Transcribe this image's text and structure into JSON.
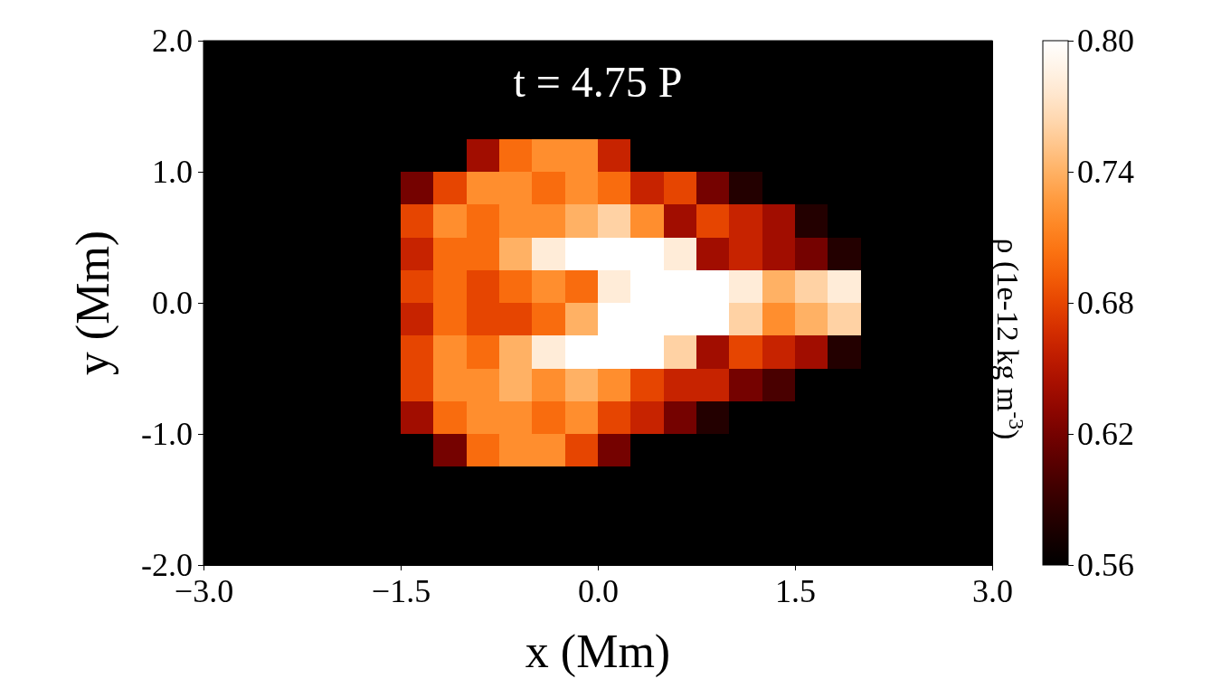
{
  "chart_data": {
    "type": "heatmap",
    "title": "t = 4.75 P",
    "xlabel": "x (Mm)",
    "ylabel": "y (Mm)",
    "clabel": "ρ (1e-12 kg m$^{-3}$)",
    "x": [
      -2.875,
      -2.625,
      -2.375,
      -2.125,
      -1.875,
      -1.625,
      -1.375,
      -1.125,
      -0.875,
      -0.625,
      -0.375,
      -0.125,
      0.125,
      0.375,
      0.625,
      0.875,
      1.125,
      1.375,
      1.625,
      1.875,
      2.125,
      2.375,
      2.625,
      2.875
    ],
    "y": [
      1.875,
      1.625,
      1.375,
      1.125,
      0.875,
      0.625,
      0.375,
      0.125,
      -0.125,
      -0.375,
      -0.625,
      -0.875,
      -1.125,
      -1.375,
      -1.625,
      -1.875
    ],
    "xlim": [
      -3,
      3
    ],
    "ylim": [
      -2,
      2
    ],
    "xticks": [
      {
        "value": -3,
        "label": "−3.0"
      },
      {
        "value": -1.5,
        "label": "−1.5"
      },
      {
        "value": 0,
        "label": "0.0"
      },
      {
        "value": 1.5,
        "label": "1.5"
      },
      {
        "value": 3,
        "label": "3.0"
      }
    ],
    "yticks": [
      {
        "value": -2,
        "label": "-2.0"
      },
      {
        "value": -1,
        "label": "-1.0"
      },
      {
        "value": 0,
        "label": "0.0"
      },
      {
        "value": 1,
        "label": "1.0"
      },
      {
        "value": 2,
        "label": "2.0"
      }
    ],
    "clim": [
      0.56,
      0.8
    ],
    "cticks": [
      0.56,
      0.62,
      0.68,
      0.74,
      {
        "value": 0.8,
        "label": "0.80"
      }
    ],
    "cells": [
      [
        0.56,
        0.56,
        0.56,
        0.56,
        0.56,
        0.56,
        0.56,
        0.56,
        0.56,
        0.56,
        0.56,
        0.56,
        0.56,
        0.56,
        0.56,
        0.56,
        0.56,
        0.56,
        0.56,
        0.56,
        0.56,
        0.56,
        0.56,
        0.56
      ],
      [
        0.56,
        0.56,
        0.56,
        0.56,
        0.56,
        0.56,
        0.56,
        0.56,
        0.56,
        0.56,
        0.56,
        0.56,
        0.56,
        0.56,
        0.56,
        0.56,
        0.56,
        0.56,
        0.56,
        0.56,
        0.56,
        0.56,
        0.56,
        0.56
      ],
      [
        0.56,
        0.56,
        0.56,
        0.56,
        0.56,
        0.56,
        0.56,
        0.56,
        0.56,
        0.56,
        0.56,
        0.56,
        0.56,
        0.56,
        0.56,
        0.56,
        0.56,
        0.56,
        0.56,
        0.56,
        0.56,
        0.56,
        0.56,
        0.56
      ],
      [
        0.56,
        0.56,
        0.56,
        0.56,
        0.56,
        0.56,
        0.56,
        0.56,
        0.64,
        0.7,
        0.72,
        0.72,
        0.66,
        0.56,
        0.56,
        0.56,
        0.56,
        0.56,
        0.56,
        0.56,
        0.56,
        0.56,
        0.56,
        0.56
      ],
      [
        0.56,
        0.56,
        0.56,
        0.56,
        0.56,
        0.56,
        0.62,
        0.68,
        0.72,
        0.72,
        0.7,
        0.72,
        0.7,
        0.66,
        0.68,
        0.62,
        0.58,
        0.56,
        0.56,
        0.56,
        0.56,
        0.56,
        0.56,
        0.56
      ],
      [
        0.56,
        0.56,
        0.56,
        0.56,
        0.56,
        0.56,
        0.68,
        0.72,
        0.7,
        0.72,
        0.72,
        0.74,
        0.76,
        0.72,
        0.64,
        0.68,
        0.66,
        0.64,
        0.58,
        0.56,
        0.56,
        0.56,
        0.56,
        0.56
      ],
      [
        0.56,
        0.56,
        0.56,
        0.56,
        0.56,
        0.56,
        0.66,
        0.7,
        0.7,
        0.74,
        0.78,
        0.8,
        0.8,
        0.8,
        0.78,
        0.64,
        0.66,
        0.64,
        0.62,
        0.58,
        0.56,
        0.56,
        0.56,
        0.56
      ],
      [
        0.56,
        0.56,
        0.56,
        0.56,
        0.56,
        0.56,
        0.68,
        0.7,
        0.68,
        0.7,
        0.72,
        0.7,
        0.78,
        0.8,
        0.8,
        0.8,
        0.78,
        0.74,
        0.76,
        0.78,
        0.56,
        0.56,
        0.56,
        0.56
      ],
      [
        0.56,
        0.56,
        0.56,
        0.56,
        0.56,
        0.56,
        0.66,
        0.7,
        0.68,
        0.68,
        0.7,
        0.74,
        0.8,
        0.8,
        0.8,
        0.8,
        0.76,
        0.72,
        0.74,
        0.76,
        0.56,
        0.56,
        0.56,
        0.56
      ],
      [
        0.56,
        0.56,
        0.56,
        0.56,
        0.56,
        0.56,
        0.68,
        0.72,
        0.7,
        0.74,
        0.78,
        0.8,
        0.8,
        0.8,
        0.76,
        0.64,
        0.68,
        0.66,
        0.64,
        0.58,
        0.56,
        0.56,
        0.56,
        0.56
      ],
      [
        0.56,
        0.56,
        0.56,
        0.56,
        0.56,
        0.56,
        0.68,
        0.72,
        0.72,
        0.74,
        0.72,
        0.74,
        0.72,
        0.68,
        0.66,
        0.66,
        0.62,
        0.6,
        0.56,
        0.56,
        0.56,
        0.56,
        0.56,
        0.56
      ],
      [
        0.56,
        0.56,
        0.56,
        0.56,
        0.56,
        0.56,
        0.64,
        0.7,
        0.72,
        0.72,
        0.7,
        0.72,
        0.68,
        0.66,
        0.62,
        0.58,
        0.56,
        0.56,
        0.56,
        0.56,
        0.56,
        0.56,
        0.56,
        0.56
      ],
      [
        0.56,
        0.56,
        0.56,
        0.56,
        0.56,
        0.56,
        0.56,
        0.62,
        0.7,
        0.72,
        0.72,
        0.68,
        0.62,
        0.56,
        0.56,
        0.56,
        0.56,
        0.56,
        0.56,
        0.56,
        0.56,
        0.56,
        0.56,
        0.56
      ],
      [
        0.56,
        0.56,
        0.56,
        0.56,
        0.56,
        0.56,
        0.56,
        0.56,
        0.56,
        0.56,
        0.56,
        0.56,
        0.56,
        0.56,
        0.56,
        0.56,
        0.56,
        0.56,
        0.56,
        0.56,
        0.56,
        0.56,
        0.56,
        0.56
      ],
      [
        0.56,
        0.56,
        0.56,
        0.56,
        0.56,
        0.56,
        0.56,
        0.56,
        0.56,
        0.56,
        0.56,
        0.56,
        0.56,
        0.56,
        0.56,
        0.56,
        0.56,
        0.56,
        0.56,
        0.56,
        0.56,
        0.56,
        0.56,
        0.56
      ],
      [
        0.56,
        0.56,
        0.56,
        0.56,
        0.56,
        0.56,
        0.56,
        0.56,
        0.56,
        0.56,
        0.56,
        0.56,
        0.56,
        0.56,
        0.56,
        0.56,
        0.56,
        0.56,
        0.56,
        0.56,
        0.56,
        0.56,
        0.56,
        0.56
      ]
    ]
  }
}
